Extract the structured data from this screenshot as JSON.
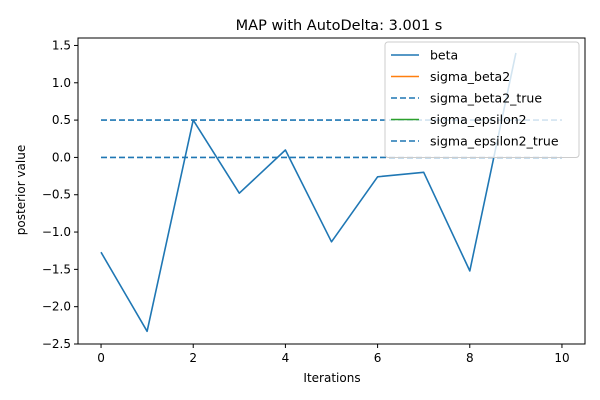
{
  "chart_data": {
    "type": "line",
    "title": "MAP with AutoDelta: 3.001 s",
    "xlabel": "Iterations",
    "ylabel": "posterior value",
    "xlim": [
      -0.5,
      10.5
    ],
    "ylim": [
      -2.5,
      1.6
    ],
    "xticks": [
      0,
      2,
      4,
      6,
      8,
      10
    ],
    "yticks": [
      -2.5,
      -2.0,
      -1.5,
      -1.0,
      -0.5,
      0.0,
      0.5,
      1.0,
      1.5
    ],
    "xtick_labels": [
      "0",
      "2",
      "4",
      "6",
      "8",
      "10"
    ],
    "ytick_labels": [
      "−2.5",
      "−2.0",
      "−1.5",
      "−1.0",
      "−0.5",
      "0.0",
      "0.5",
      "1.0",
      "1.5"
    ],
    "grid": false,
    "legend_position": "top-right",
    "series": [
      {
        "name": "beta",
        "style": "solid",
        "color": "#1f77b4",
        "x": [
          0,
          1,
          2,
          3,
          4,
          5,
          6,
          7,
          8,
          9
        ],
        "y": [
          -1.27,
          -2.33,
          0.5,
          -0.48,
          0.1,
          -1.13,
          -0.26,
          -0.2,
          -1.52,
          1.4
        ]
      },
      {
        "name": "sigma_beta2",
        "style": "solid",
        "color": "#ff7f0e",
        "x": [],
        "y": []
      },
      {
        "name": "sigma_beta2_true",
        "style": "dashed",
        "color": "#1f77b4",
        "x": [
          0,
          10
        ],
        "y": [
          0.5,
          0.5
        ]
      },
      {
        "name": "sigma_epsilon2",
        "style": "solid",
        "color": "#2ca02c",
        "x": [],
        "y": []
      },
      {
        "name": "sigma_epsilon2_true",
        "style": "dashed",
        "color": "#1f77b4",
        "x": [
          0,
          10
        ],
        "y": [
          0.0,
          0.0
        ]
      }
    ]
  }
}
